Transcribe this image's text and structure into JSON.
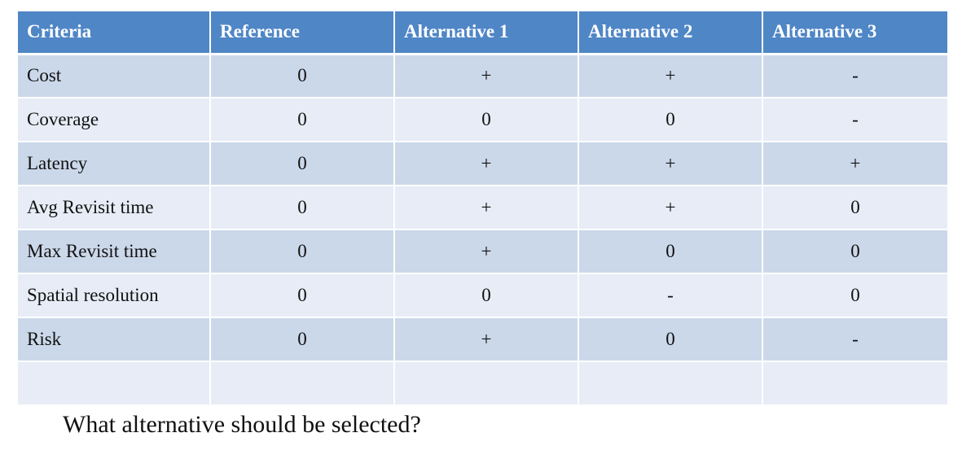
{
  "table": {
    "headers": [
      "Criteria",
      "Reference",
      "Alternative 1",
      "Alternative 2",
      "Alternative 3"
    ],
    "rows": [
      [
        "Cost",
        "0",
        "+",
        "+",
        "-"
      ],
      [
        "Coverage",
        "0",
        "0",
        "0",
        "-"
      ],
      [
        "Latency",
        "0",
        "+",
        "+",
        "+"
      ],
      [
        "Avg Revisit time",
        "0",
        "+",
        "+",
        "0"
      ],
      [
        "Max Revisit time",
        "0",
        "+",
        "0",
        "0"
      ],
      [
        "Spatial resolution",
        "0",
        "0",
        "-",
        "0"
      ],
      [
        "Risk",
        "0",
        "+",
        "0",
        "-"
      ],
      [
        "",
        "",
        "",
        "",
        ""
      ]
    ]
  },
  "question": "What alternative should be selected?",
  "colors": {
    "header_bg": "#4f86c6",
    "row_dark": "#cbd8ea",
    "row_light": "#e7ecf6"
  }
}
